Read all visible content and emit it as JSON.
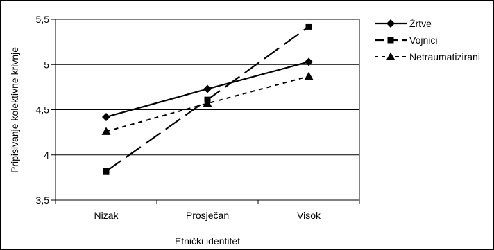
{
  "chart_data": {
    "type": "line",
    "categories": [
      "Nizak",
      "Prosječan",
      "Visok"
    ],
    "series": [
      {
        "name": "Žrtve",
        "values": [
          4.42,
          4.73,
          5.03
        ],
        "marker": "diamond",
        "dash": "solid"
      },
      {
        "name": "Vojnici",
        "values": [
          3.82,
          4.61,
          5.42
        ],
        "marker": "square",
        "dash": "long-dash"
      },
      {
        "name": "Netraumatizirani",
        "values": [
          4.26,
          4.57,
          4.87
        ],
        "marker": "triangle",
        "dash": "short-dash"
      }
    ],
    "xlabel": "Etnički identitet",
    "ylabel": "Pripisivanje kolektivne krivnje",
    "ylim": [
      3.5,
      5.5
    ],
    "yticks": [
      {
        "value": 3.5,
        "label": "3,5"
      },
      {
        "value": 4,
        "label": "4"
      },
      {
        "value": 4.5,
        "label": "4,5"
      },
      {
        "value": 5,
        "label": "5"
      },
      {
        "value": 5.5,
        "label": "5,5"
      }
    ],
    "grid": "horizontal",
    "legend_position": "right",
    "line_color": "#000000",
    "grid_color": "#000000"
  }
}
